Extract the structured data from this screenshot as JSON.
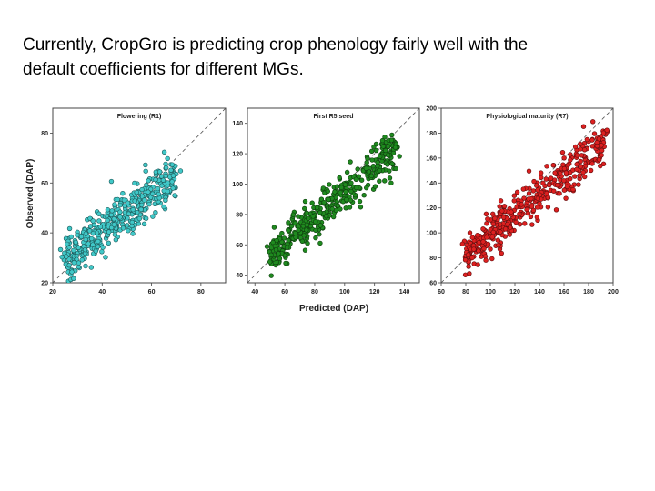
{
  "slide": {
    "line1": "Currently, CropGro is predicting crop phenology fairly well with the",
    "line2": "default coefficients for different MGs."
  },
  "chart_data": [
    {
      "type": "scatter",
      "title": "Flowering (R1)",
      "xlabel": "Predicted (DAP)",
      "ylabel": "Observed (DAP)",
      "xlim": [
        20,
        90
      ],
      "ylim": [
        20,
        90
      ],
      "xticks": [
        20,
        40,
        60,
        80
      ],
      "yticks": [
        20,
        40,
        60,
        80
      ],
      "color": "#40c8c8",
      "reference_line": "1:1",
      "cluster": {
        "x_range": [
          25,
          70
        ],
        "trend_slope": 0.72,
        "trend_intercept": 12,
        "spread": 4.5,
        "n": 420
      }
    },
    {
      "type": "scatter",
      "title": "First R5 seed",
      "xlabel": "Predicted (DAP)",
      "ylabel": "Observed (DAP)",
      "xlim": [
        35,
        150
      ],
      "ylim": [
        35,
        150
      ],
      "xticks": [
        40,
        60,
        80,
        100,
        120,
        140
      ],
      "yticks": [
        40,
        60,
        80,
        100,
        120,
        140
      ],
      "color": "#1f8a1f",
      "reference_line": "1:1",
      "cluster": {
        "x_range": [
          50,
          135
        ],
        "trend_slope": 0.85,
        "trend_intercept": 10,
        "spread": 7,
        "n": 420
      }
    },
    {
      "type": "scatter",
      "title": "Physiological maturity (R7)",
      "xlabel": "Predicted (DAP)",
      "ylabel": "Observed (DAP)",
      "xlim": [
        60,
        200
      ],
      "ylim": [
        60,
        200
      ],
      "xticks": [
        60,
        80,
        100,
        120,
        140,
        160,
        180,
        200
      ],
      "yticks": [
        60,
        80,
        100,
        120,
        140,
        160,
        180,
        200
      ],
      "color": "#dd2020",
      "reference_line": "1:1",
      "cluster": {
        "x_range": [
          80,
          195
        ],
        "trend_slope": 0.82,
        "trend_intercept": 15,
        "spread": 8,
        "n": 450
      }
    }
  ]
}
